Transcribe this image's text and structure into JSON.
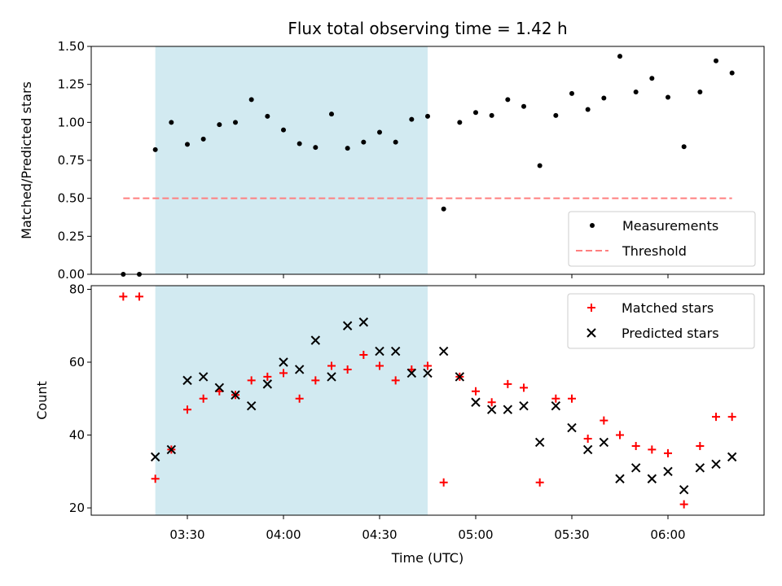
{
  "chart_data": [
    {
      "type": "scatter",
      "title": "Flux total observing time = 1.42 h",
      "xlabel": "",
      "ylabel": "Matched/Predicted stars",
      "ylim": [
        0,
        1.5
      ],
      "yticks": [
        "0.00",
        "0.25",
        "0.50",
        "0.75",
        "1.00",
        "1.25",
        "1.50"
      ],
      "xlim": [
        "03:00",
        "06:30"
      ],
      "shaded_span": [
        "03:20",
        "04:45"
      ],
      "legend_position": "lower-right",
      "series": [
        {
          "name": "Measurements",
          "marker": "dot",
          "color": "#000000",
          "x": [
            "03:10",
            "03:15",
            "03:20",
            "03:25",
            "03:30",
            "03:35",
            "03:40",
            "03:45",
            "03:50",
            "03:55",
            "04:00",
            "04:05",
            "04:10",
            "04:15",
            "04:20",
            "04:25",
            "04:30",
            "04:35",
            "04:40",
            "04:45",
            "04:50",
            "04:55",
            "05:00",
            "05:05",
            "05:10",
            "05:15",
            "05:20",
            "05:25",
            "05:30",
            "05:35",
            "05:40",
            "05:45",
            "05:50",
            "05:55",
            "06:00",
            "06:05",
            "06:10",
            "06:15",
            "06:20"
          ],
          "y": [
            0.0,
            0.0,
            0.82,
            1.0,
            0.855,
            0.89,
            0.985,
            1.0,
            1.15,
            1.04,
            0.95,
            0.86,
            0.835,
            1.055,
            0.83,
            0.87,
            0.935,
            0.87,
            1.02,
            1.04,
            0.43,
            1.0,
            1.065,
            1.045,
            1.15,
            1.105,
            0.715,
            1.045,
            1.19,
            1.085,
            1.16,
            1.435,
            1.2,
            1.29,
            1.165,
            0.84,
            1.2,
            1.405,
            1.325
          ]
        },
        {
          "name": "Threshold",
          "line": "dashed",
          "color": "#ff7f7f",
          "x": [
            "03:10",
            "06:20"
          ],
          "y": [
            0.5,
            0.5
          ]
        }
      ]
    },
    {
      "type": "scatter",
      "title": "",
      "xlabel": "Time (UTC)",
      "ylabel": "Count",
      "ylim": [
        18,
        81
      ],
      "yticks": [
        "20",
        "40",
        "60",
        "80"
      ],
      "xlim": [
        "03:00",
        "06:30"
      ],
      "xticks": [
        "03:30",
        "04:00",
        "04:30",
        "05:00",
        "05:30",
        "06:00"
      ],
      "shaded_span": [
        "03:20",
        "04:45"
      ],
      "legend_position": "upper-right",
      "series": [
        {
          "name": "Matched stars",
          "marker": "plus",
          "color": "#ff0000",
          "x": [
            "03:10",
            "03:15",
            "03:20",
            "03:25",
            "03:30",
            "03:35",
            "03:40",
            "03:45",
            "03:50",
            "03:55",
            "04:00",
            "04:05",
            "04:10",
            "04:15",
            "04:20",
            "04:25",
            "04:30",
            "04:35",
            "04:40",
            "04:45",
            "04:50",
            "04:55",
            "05:00",
            "05:05",
            "05:10",
            "05:15",
            "05:20",
            "05:25",
            "05:30",
            "05:35",
            "05:40",
            "05:45",
            "05:50",
            "05:55",
            "06:00",
            "06:05",
            "06:10",
            "06:15",
            "06:20"
          ],
          "y": [
            78,
            78,
            28,
            36,
            47,
            50,
            52,
            51,
            55,
            56,
            57,
            50,
            55,
            59,
            58,
            62,
            59,
            55,
            58,
            59,
            27,
            56,
            52,
            49,
            54,
            53,
            27,
            50,
            50,
            39,
            44,
            40,
            37,
            36,
            35,
            21,
            37,
            45,
            45
          ]
        },
        {
          "name": "Predicted stars",
          "marker": "x",
          "color": "#000000",
          "x": [
            "03:20",
            "03:25",
            "03:30",
            "03:35",
            "03:40",
            "03:45",
            "03:50",
            "03:55",
            "04:00",
            "04:05",
            "04:10",
            "04:15",
            "04:20",
            "04:25",
            "04:30",
            "04:35",
            "04:40",
            "04:45",
            "04:50",
            "04:55",
            "05:00",
            "05:05",
            "05:10",
            "05:15",
            "05:20",
            "05:25",
            "05:30",
            "05:35",
            "05:40",
            "05:45",
            "05:50",
            "05:55",
            "06:00",
            "06:05",
            "06:10",
            "06:15",
            "06:20"
          ],
          "y": [
            34,
            36,
            55,
            56,
            53,
            51,
            48,
            54,
            60,
            58,
            66,
            56,
            70,
            71,
            63,
            63,
            57,
            57,
            63,
            56,
            49,
            47,
            47,
            48,
            38,
            48,
            42,
            36,
            38,
            28,
            31,
            28,
            30,
            25,
            31,
            32,
            34
          ]
        }
      ]
    }
  ],
  "colors": {
    "shade": "#add8e6",
    "axes": "#000000"
  }
}
